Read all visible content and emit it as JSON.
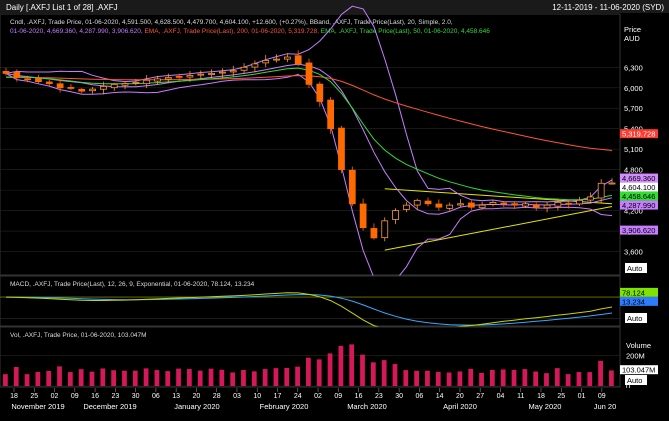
{
  "header": {
    "title": "Daily [.AXFJ List 1 of 28] .AXFJ",
    "date_range": "12-11-2019 - 11-06-2020 (SYD)"
  },
  "price_panel": {
    "legend_line1": "Cndl, .AXFJ, Trade Price, 01-06-2020, 4,591.500, 4,628.500, 4,479.700, 4,604.100, +12.600, (+0.27%), BBand, .AXFJ, Trade Price(Last), 20, Simple, 2.0,",
    "legend_line2_parts": [
      {
        "text": "01-06-2020, 4,669.360, 4,287.990, 3,906.620, ",
        "color": "#c77dff"
      },
      {
        "text": "EMA, .AXFJ, Trade Price(Last), 200, 01-06-2020, 5,319.728, ",
        "color": "#ff5533"
      },
      {
        "text": "EMA, .AXFJ, Trade Price(Last), 50, 01-06-2020, 4,458.646",
        "color": "#33dd33"
      }
    ],
    "axis_title": "Price",
    "axis_unit": "AUD",
    "auto_label": "Auto"
  },
  "macd_panel": {
    "legend": "MACD, .AXFJ, Trade Price(Last), 12, 26, 9, Exponential, 01-06-2020, 78.124, 13.234",
    "auto_label": "Auto"
  },
  "volume_panel": {
    "legend": "Vol, .AXFJ, Trade Price, 01-06-2020, 103.047M",
    "axis_title": "Volume",
    "auto_label": "Auto"
  },
  "chart_data": [
    {
      "type": "candlestick",
      "panel": "price",
      "y_ticks": [
        6300,
        6000,
        5700,
        5400,
        5100,
        4800,
        4500,
        4200,
        3900,
        3600
      ],
      "y_tick_labels": [
        "6,300",
        "6,000",
        "5,700",
        "5,400",
        "5,100",
        "4,800",
        "4,500",
        "4,200",
        "3,900",
        "3,600"
      ],
      "ylim": [
        3300,
        6700
      ],
      "x_day_labels": [
        "18",
        "25",
        "02",
        "09",
        "16",
        "23",
        "30",
        "06",
        "13",
        "20",
        "28",
        "03",
        "10",
        "17",
        "24",
        "02",
        "09",
        "16",
        "23",
        "30",
        "06",
        "14",
        "20",
        "27",
        "04",
        "11",
        "18",
        "25",
        "01",
        "09"
      ],
      "x_month_labels": [
        "November 2019",
        "December 2019",
        "January 2020",
        "February 2020",
        "March 2020",
        "April 2020",
        "May 2020",
        "Jun 20"
      ],
      "close_path": [
        6210,
        6150,
        6130,
        6090,
        6060,
        6000,
        5990,
        5950,
        5980,
        6020,
        6050,
        6060,
        6080,
        6110,
        6130,
        6150,
        6160,
        6180,
        6200,
        6210,
        6230,
        6250,
        6300,
        6350,
        6400,
        6420,
        6450,
        6350,
        6050,
        5800,
        5400,
        4800,
        4300,
        3950,
        3800,
        4050,
        4200,
        4280,
        4350,
        4300,
        4250,
        4280,
        4300,
        4250,
        4280,
        4320,
        4300,
        4280,
        4300,
        4250,
        4280,
        4320,
        4300,
        4350,
        4400,
        4600,
        4604.1
      ],
      "series": [
        {
          "name": "BBand Upper",
          "color": "#c77dff",
          "last": 4669.36
        },
        {
          "name": "BBand Middle",
          "color": "#c77dff",
          "last": 4287.99
        },
        {
          "name": "BBand Lower",
          "color": "#c77dff",
          "last": 3906.62
        },
        {
          "name": "EMA 200",
          "color": "#ff5533",
          "last": 5319.728
        },
        {
          "name": "EMA 50",
          "color": "#33dd33",
          "last": 4458.646
        }
      ],
      "last_candle": {
        "date": "01-06-2020",
        "open": 4591.5,
        "high": 4628.5,
        "low": 4479.7,
        "close": 4604.1,
        "change": "+12.600",
        "change_pct": "(+0.27%)"
      },
      "value_tags": [
        {
          "label": "5,319.728",
          "value": 5319.728,
          "bg": "#ff3b2f",
          "fg": "#ffffff"
        },
        {
          "label": "4,669.360",
          "value": 4669.36,
          "bg": "#d38cff",
          "fg": "#000000"
        },
        {
          "label": "4,604.100",
          "value": 4604.1,
          "bg": "#ffffff",
          "fg": "#000000"
        },
        {
          "label": "4,458.646",
          "value": 4458.646,
          "bg": "#33dd33",
          "fg": "#000000"
        },
        {
          "label": "4,287.990",
          "value": 4287.99,
          "bg": "#c77dff",
          "fg": "#000000"
        },
        {
          "label": "3,906.620",
          "value": 3906.62,
          "bg": "#c77dff",
          "fg": "#000000"
        }
      ],
      "trendlines_color": "#e6e600"
    },
    {
      "type": "line",
      "panel": "macd",
      "y_ticks": [
        0,
        -400
      ],
      "y_tick_labels": [
        "0",
        "-400"
      ],
      "ylim": [
        -500,
        150
      ],
      "series": [
        {
          "name": "MACD",
          "color": "#c8d400",
          "last": 78.124
        },
        {
          "name": "Signal",
          "color": "#33aaff",
          "last": 13.234
        }
      ],
      "value_tags": [
        {
          "label": "78.124",
          "value": 78.124,
          "bg": "#7fe300",
          "fg": "#000000"
        },
        {
          "label": "13.234",
          "value": 13.234,
          "bg": "#2e7bff",
          "fg": "#000000"
        }
      ]
    },
    {
      "type": "bar",
      "panel": "volume",
      "y_ticks": [
        200,
        0
      ],
      "y_tick_labels": [
        "200M",
        "0"
      ],
      "ylim": [
        0,
        300
      ],
      "color": "#d4185a",
      "last": 103.047,
      "value_tags": [
        {
          "label": "103.047M",
          "value": 103.047,
          "bg": "#ffffff",
          "fg": "#000000"
        }
      ]
    }
  ]
}
